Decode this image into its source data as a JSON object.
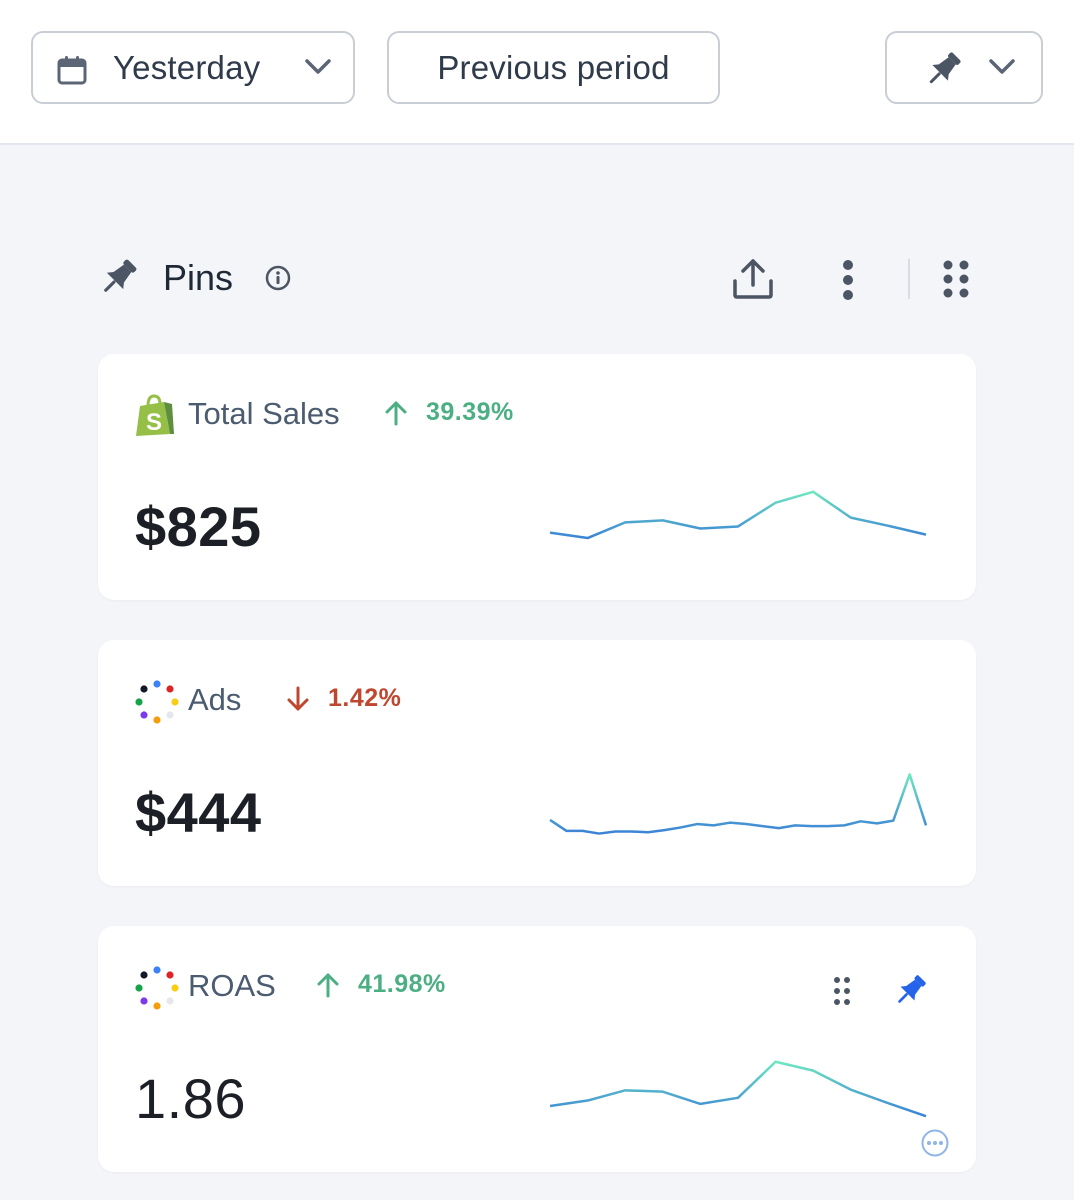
{
  "toolbar": {
    "date_range": "Yesterday",
    "compare": "Previous period"
  },
  "section": {
    "title": "Pins"
  },
  "colors": {
    "up": "#4caf83",
    "down": "#c0472f",
    "spark_start": "#3b82d6",
    "spark_end": "#6ee7c0",
    "pin_active": "#2563eb"
  },
  "cards": [
    {
      "title": "Total Sales",
      "source_icon": "shopify-icon",
      "trend_direction": "up",
      "trend": "39.39%",
      "value": "$825",
      "sparkline": [
        0.3,
        0.22,
        0.45,
        0.48,
        0.36,
        0.39,
        0.74,
        0.9,
        0.52,
        0.4,
        0.27
      ]
    },
    {
      "title": "Ads",
      "source_icon": "ads-dots-icon",
      "trend_direction": "down",
      "trend": "1.42%",
      "value": "$444",
      "sparkline": [
        0.28,
        0.12,
        0.12,
        0.08,
        0.11,
        0.11,
        0.1,
        0.13,
        0.17,
        0.22,
        0.2,
        0.24,
        0.22,
        0.19,
        0.16,
        0.2,
        0.19,
        0.19,
        0.2,
        0.26,
        0.23,
        0.27,
        0.95,
        0.2
      ]
    },
    {
      "title": "ROAS",
      "source_icon": "ads-dots-icon",
      "trend_direction": "up",
      "trend": "41.98%",
      "value": "1.86",
      "sparkline": [
        0.28,
        0.36,
        0.51,
        0.49,
        0.31,
        0.4,
        0.93,
        0.8,
        0.52,
        0.32,
        0.13
      ]
    }
  ]
}
